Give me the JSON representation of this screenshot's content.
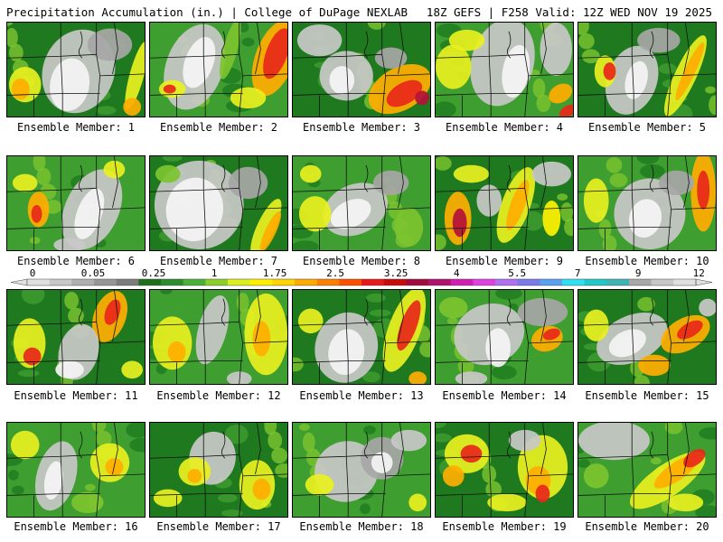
{
  "header": {
    "title": "Precipitation Accumulation (in.) | College of DuPage NEXLAB",
    "run_info": "18Z GEFS | F258 Valid: 12Z WED NOV 19 2025"
  },
  "panels": [
    {
      "caption": "Ensemble Member: 1",
      "pattern": 0
    },
    {
      "caption": "Ensemble Member: 2",
      "pattern": 1
    },
    {
      "caption": "Ensemble Member: 3",
      "pattern": 2
    },
    {
      "caption": "Ensemble Member: 4",
      "pattern": 3
    },
    {
      "caption": "Ensemble Member: 5",
      "pattern": 4
    },
    {
      "caption": "Ensemble Member: 6",
      "pattern": 5
    },
    {
      "caption": "Ensemble Member: 7",
      "pattern": 6
    },
    {
      "caption": "Ensemble Member: 8",
      "pattern": 7
    },
    {
      "caption": "Ensemble Member: 9",
      "pattern": 8
    },
    {
      "caption": "Ensemble Member: 10",
      "pattern": 9
    },
    {
      "caption": "Ensemble Member: 11",
      "pattern": 10
    },
    {
      "caption": "Ensemble Member: 12",
      "pattern": 11
    },
    {
      "caption": "Ensemble Member: 13",
      "pattern": 12
    },
    {
      "caption": "Ensemble Member: 14",
      "pattern": 13
    },
    {
      "caption": "Ensemble Member: 15",
      "pattern": 14
    },
    {
      "caption": "Ensemble Member: 16",
      "pattern": 15
    },
    {
      "caption": "Ensemble Member: 17",
      "pattern": 16
    },
    {
      "caption": "Ensemble Member: 18",
      "pattern": 17
    },
    {
      "caption": "Ensemble Member: 19",
      "pattern": 18
    },
    {
      "caption": "Ensemble Member: 20",
      "pattern": 19
    }
  ],
  "legend": {
    "labels": [
      "0",
      "0.05",
      "0.25",
      "1",
      "1.75",
      "2.5",
      "3.25",
      "4",
      "5.5",
      "7",
      "9",
      "12"
    ],
    "colors": [
      "#e0e0e0",
      "#c8c8c8",
      "#b0b0b0",
      "#969696",
      "#7c7c7c",
      "#1e6e1e",
      "#2e8b2e",
      "#4caf3a",
      "#8ccf2a",
      "#dcef1e",
      "#fff000",
      "#ffd400",
      "#ffaa00",
      "#ff8000",
      "#ff5000",
      "#e81a1a",
      "#c80c0c",
      "#a00a3c",
      "#b0106e",
      "#d020b0",
      "#e040e0",
      "#b070f0",
      "#7a7ae8",
      "#5aa0f0",
      "#30e0f0",
      "#20c8c8",
      "#40b4b4",
      "#a8a8a8",
      "#c8c8c8",
      "#e0e0e0"
    ]
  }
}
